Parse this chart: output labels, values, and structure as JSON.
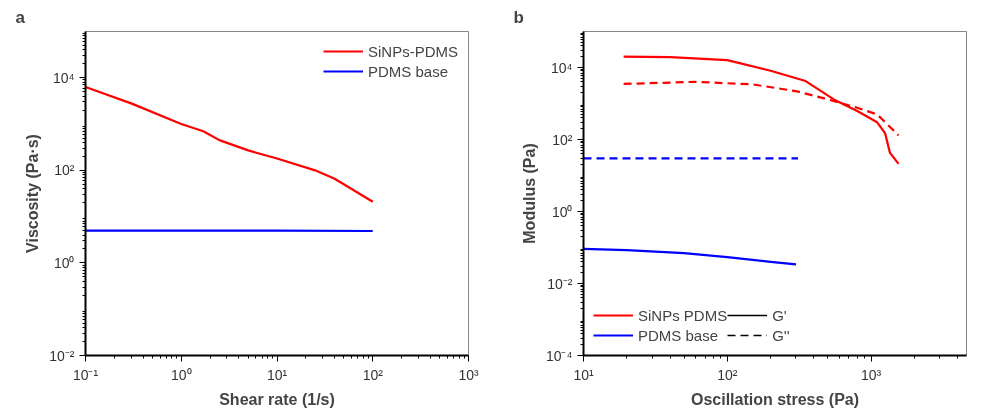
{
  "chart_data": [
    {
      "type": "line",
      "title": "a",
      "xlabel": "Shear rate (1/s)",
      "ylabel": "Viscosity (Pa·s)",
      "log": "xy",
      "grid": false,
      "legend": "top right",
      "line_style": "solid",
      "marker": "none",
      "xlim": [
        0.1,
        1000
      ],
      "ylim": [
        0.01,
        100000
      ],
      "xticks": [
        {
          "value": 0.1,
          "label": "10⁻¹"
        },
        {
          "value": 1,
          "label": "10⁰"
        },
        {
          "value": 10,
          "label": "10¹"
        },
        {
          "value": 100,
          "label": "10²"
        },
        {
          "value": 1000,
          "label": "10³"
        }
      ],
      "yticks": [
        {
          "value": 0.01,
          "label": "10⁻²"
        },
        {
          "value": 1,
          "label": "10⁰"
        },
        {
          "value": 100,
          "label": "10²"
        },
        {
          "value": 10000,
          "label": "10⁴"
        }
      ],
      "series": [
        {
          "name": "SiNPs-PDMS",
          "color": "#ff0000",
          "x": [
            0.1,
            0.3,
            1,
            1.7,
            2.5,
            5,
            10,
            25,
            40,
            100
          ],
          "values": [
            6300,
            2800,
            1000,
            700,
            450,
            270,
            180,
            100,
            66,
            21
          ]
        },
        {
          "name": "PDMS base",
          "color": "#0000ff",
          "x": [
            0.1,
            1,
            10,
            100
          ],
          "values": [
            5.0,
            5.0,
            5.0,
            4.9
          ]
        }
      ]
    },
    {
      "type": "line",
      "title": "b",
      "xlabel": "Oscillation stress (Pa)",
      "ylabel": "Modulus (Pa)",
      "log": "xy",
      "grid": false,
      "legend": "bottom left",
      "marker": "none",
      "xlim": [
        10,
        4600
      ],
      "ylim": [
        0.0001,
        100000
      ],
      "xticks": [
        {
          "value": 10,
          "label": "10¹"
        },
        {
          "value": 100,
          "label": "10²"
        },
        {
          "value": 1000,
          "label": "10³"
        }
      ],
      "yticks": [
        {
          "value": 0.0001,
          "label": "10⁻⁴"
        },
        {
          "value": 0.01,
          "label": "10⁻²"
        },
        {
          "value": 1,
          "label": "10⁰"
        },
        {
          "value": 100,
          "label": "10²"
        },
        {
          "value": 10000,
          "label": "10⁴"
        }
      ],
      "annotations": [
        "G'",
        "G''"
      ],
      "series": [
        {
          "name": "SiNPs PDMS",
          "color": "#ff0000",
          "line_style": "solid",
          "x": [
            19,
            40,
            100,
            200,
            350,
            550,
            800,
            1100,
            1250,
            1350,
            1550
          ],
          "values": [
            20000,
            19500,
            16000,
            8100,
            4200,
            1300,
            620,
            300,
            150,
            43,
            21
          ]
        },
        {
          "name": "PDMS base",
          "color": "#0000ff",
          "line_style": "solid",
          "x": [
            10,
            20,
            50,
            100,
            200,
            300
          ],
          "values": [
            0.091,
            0.085,
            0.07,
            0.054,
            0.04,
            0.034
          ]
        },
        {
          "color": "#ff0000",
          "line_style": "dashed",
          "x": [
            19,
            60,
            150,
            300,
            500,
            800,
            1100,
            1550
          ],
          "values": [
            3500,
            4000,
            3400,
            2200,
            1300,
            760,
            500,
            130
          ]
        },
        {
          "color": "#0000ff",
          "line_style": "dashed",
          "x": [
            10,
            100,
            310
          ],
          "values": [
            30,
            30,
            30
          ]
        }
      ]
    }
  ]
}
